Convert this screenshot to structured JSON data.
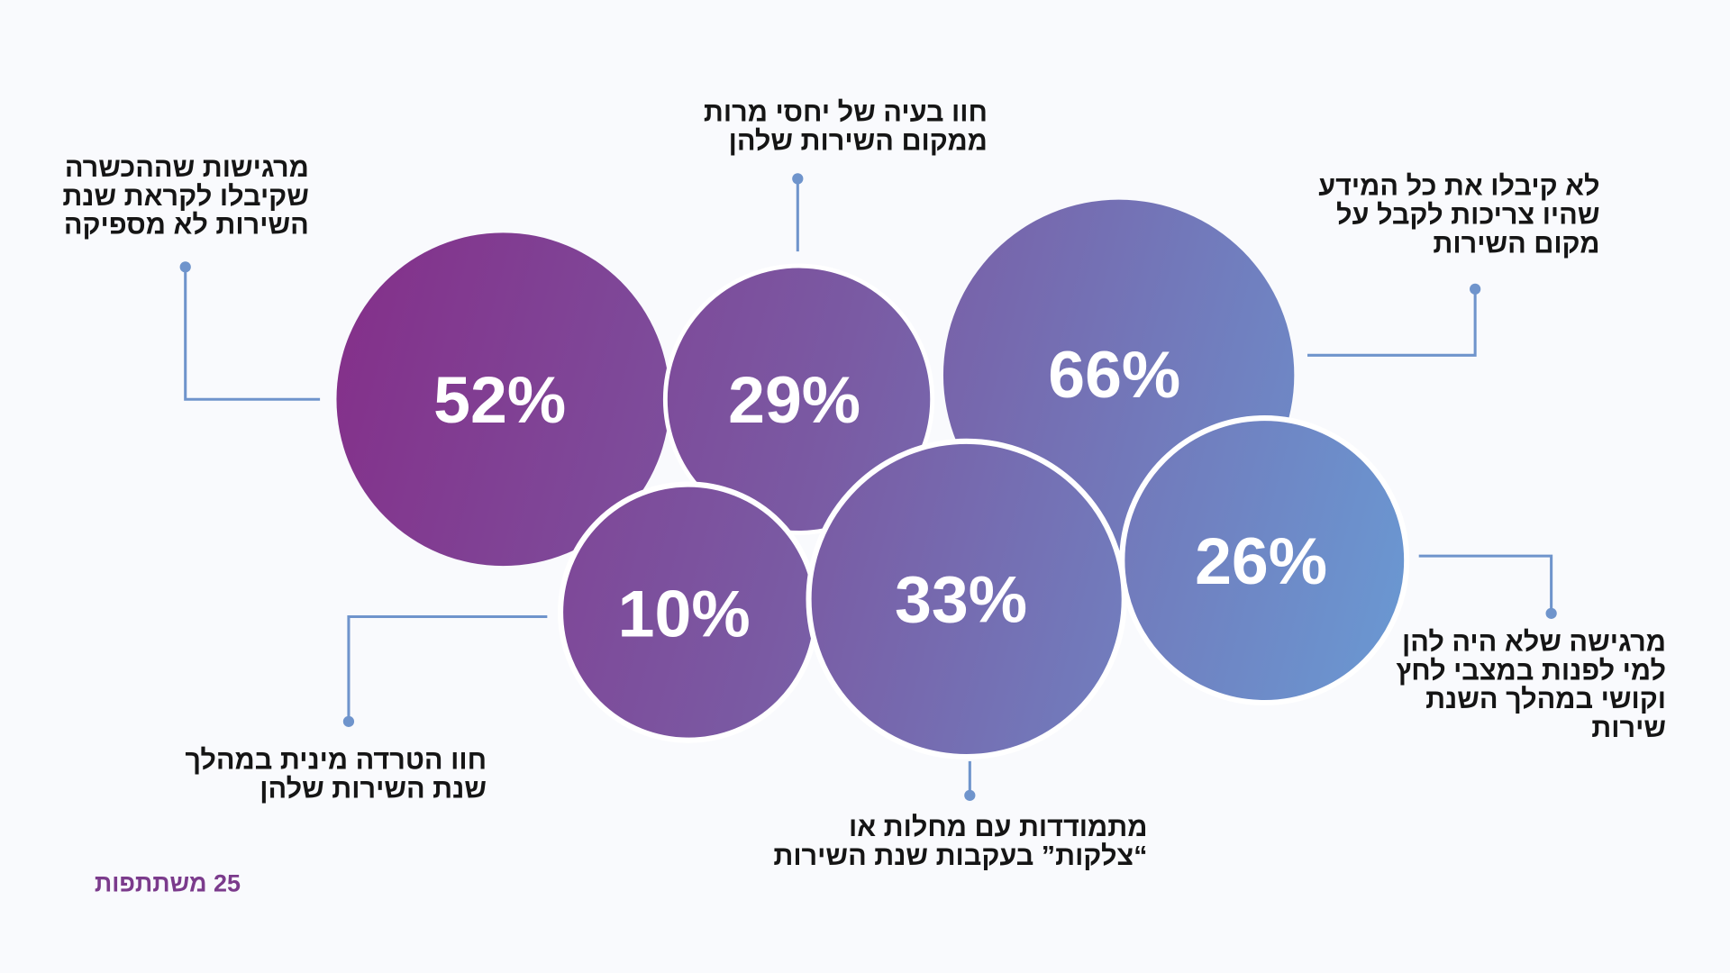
{
  "chart_data": {
    "type": "bubble",
    "title": "",
    "unit": "%",
    "items": [
      {
        "value": 52,
        "label": "52%",
        "lines": [
          "מרגישות שההכשרה",
          "שקיבלו לקראת שנת",
          "השירות לא מספיקה"
        ]
      },
      {
        "value": 29,
        "label": "29%",
        "lines": [
          "חוו בעיה של יחסי מרות",
          "ממקום השירות שלהן"
        ]
      },
      {
        "value": 66,
        "label": "66%",
        "lines": [
          "לא קיבלו את כל המידע",
          "שהיו צריכות לקבל על",
          "מקום השירות"
        ]
      },
      {
        "value": 26,
        "label": "26%",
        "lines": [
          "מרגישה שלא היה להן",
          "למי לפנות במצבי לחץ",
          "וקושי במהלך השנת",
          "שירות"
        ]
      },
      {
        "value": 10,
        "label": "10%",
        "lines": [
          "חוו הטרדה מינית במהלך",
          "שנת השירות שלהן"
        ]
      },
      {
        "value": 33,
        "label": "33%",
        "lines": [
          "מתמודדות עם מחלות או",
          "“צלקות” בעקבות שנת השירות"
        ]
      }
    ],
    "colors": {
      "gradient_start": "#84308a",
      "gradient_end": "#6a98d2",
      "leader": "#6f94cc"
    }
  },
  "footer": {
    "participants": "25 משתתפות"
  }
}
